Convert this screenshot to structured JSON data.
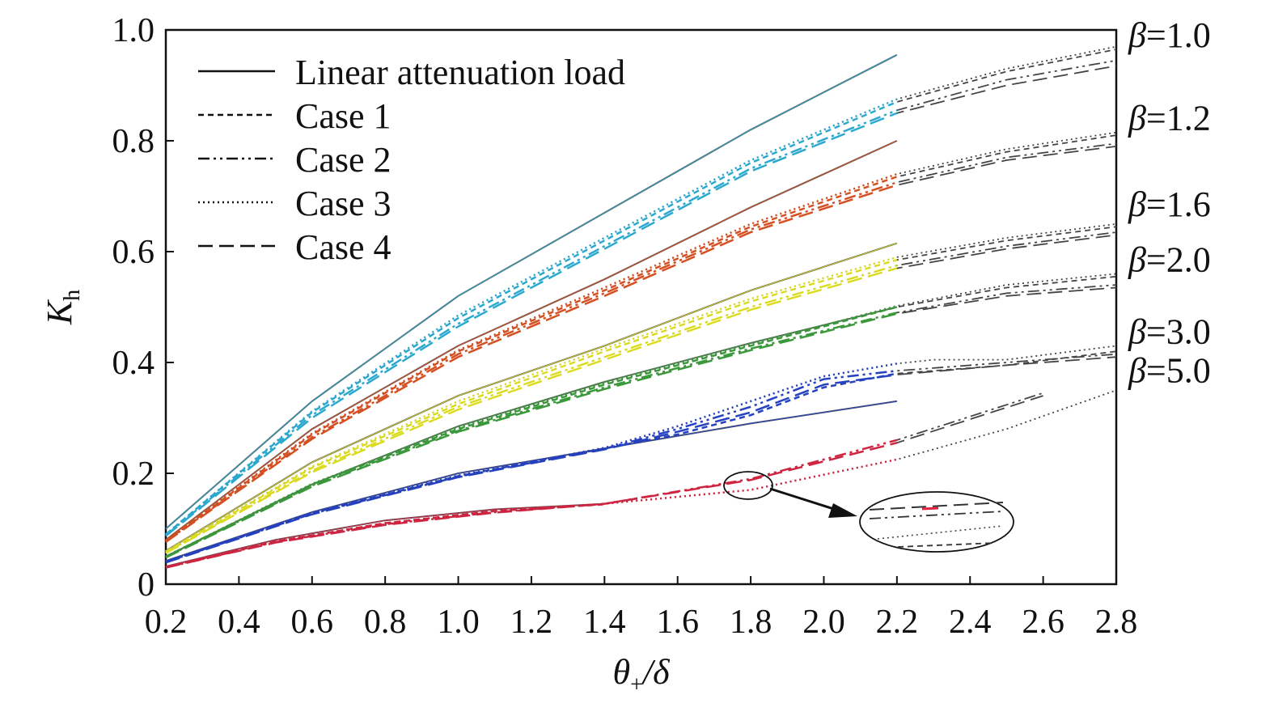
{
  "chart_data": {
    "type": "line",
    "xlabel": "θ+/δ",
    "ylabel": "Kh",
    "xlim": [
      0.2,
      2.8
    ],
    "ylim": [
      0,
      1.0
    ],
    "xticks": [
      "0.2",
      "0.4",
      "0.6",
      "0.8",
      "1.0",
      "1.2",
      "1.4",
      "1.6",
      "1.8",
      "2.0",
      "2.2",
      "2.4",
      "2.6",
      "2.8"
    ],
    "yticks": [
      "0",
      "0.2",
      "0.4",
      "0.6",
      "0.8",
      "1.0"
    ],
    "legend": {
      "position": "top-left",
      "entries": [
        {
          "label": "Linear attenuation load",
          "dash": "solid"
        },
        {
          "label": "Case 1",
          "dash": "short-dash"
        },
        {
          "label": "Case 2",
          "dash": "dash-dot-dot"
        },
        {
          "label": "Case 3",
          "dash": "dotted"
        },
        {
          "label": "Case 4",
          "dash": "long-dash"
        }
      ]
    },
    "beta_labels": [
      {
        "text": "β=1.0",
        "y": 0.99
      },
      {
        "text": "β=1.2",
        "y": 0.84
      },
      {
        "text": "β=1.6",
        "y": 0.685
      },
      {
        "text": "β=2.0",
        "y": 0.585
      },
      {
        "text": "β=3.0",
        "y": 0.455
      },
      {
        "text": "β=5.0",
        "y": 0.385
      }
    ],
    "groups": [
      {
        "beta": "β=1.0",
        "color": "#29b6e0",
        "linear": {
          "x": [
            0.2,
            0.6,
            1.0,
            1.4,
            1.8,
            2.2
          ],
          "y": [
            0.1,
            0.33,
            0.52,
            0.67,
            0.82,
            0.955
          ]
        },
        "cases": [
          {
            "name": "Case 1",
            "x": [
              0.2,
              0.6,
              1.0,
              1.4,
              1.8,
              2.2,
              2.5,
              2.8
            ],
            "y": [
              0.09,
              0.31,
              0.48,
              0.62,
              0.76,
              0.87,
              0.925,
              0.965
            ]
          },
          {
            "name": "Case 2",
            "x": [
              0.2,
              0.6,
              1.0,
              1.4,
              1.8,
              2.2,
              2.5,
              2.8
            ],
            "y": [
              0.088,
              0.305,
              0.47,
              0.61,
              0.75,
              0.855,
              0.91,
              0.945
            ]
          },
          {
            "name": "Case 3",
            "x": [
              0.2,
              0.6,
              1.0,
              1.4,
              1.8,
              2.2,
              2.5,
              2.8
            ],
            "y": [
              0.09,
              0.312,
              0.485,
              0.625,
              0.765,
              0.875,
              0.93,
              0.97
            ]
          },
          {
            "name": "Case 4",
            "x": [
              0.2,
              0.6,
              1.0,
              1.4,
              1.8,
              2.2,
              2.5,
              2.8
            ],
            "y": [
              0.087,
              0.3,
              0.465,
              0.605,
              0.745,
              0.85,
              0.9,
              0.935
            ]
          }
        ]
      },
      {
        "beta": "β=1.2",
        "color": "#e8501c",
        "linear": {
          "x": [
            0.2,
            0.6,
            1.0,
            1.4,
            1.8,
            2.2
          ],
          "y": [
            0.08,
            0.28,
            0.43,
            0.55,
            0.68,
            0.8
          ]
        },
        "cases": [
          {
            "name": "Case 1",
            "x": [
              0.2,
              0.6,
              1.0,
              1.4,
              1.8,
              2.2,
              2.5,
              2.8
            ],
            "y": [
              0.078,
              0.27,
              0.42,
              0.53,
              0.645,
              0.735,
              0.78,
              0.81
            ]
          },
          {
            "name": "Case 2",
            "x": [
              0.2,
              0.6,
              1.0,
              1.4,
              1.8,
              2.2,
              2.5,
              2.8
            ],
            "y": [
              0.077,
              0.265,
              0.415,
              0.525,
              0.64,
              0.725,
              0.77,
              0.795
            ]
          },
          {
            "name": "Case 3",
            "x": [
              0.2,
              0.6,
              1.0,
              1.4,
              1.8,
              2.2,
              2.5,
              2.8
            ],
            "y": [
              0.079,
              0.272,
              0.422,
              0.535,
              0.65,
              0.74,
              0.785,
              0.815
            ]
          },
          {
            "name": "Case 4",
            "x": [
              0.2,
              0.6,
              1.0,
              1.4,
              1.8,
              2.2,
              2.5,
              2.8
            ],
            "y": [
              0.076,
              0.262,
              0.41,
              0.52,
              0.635,
              0.72,
              0.765,
              0.79
            ]
          }
        ]
      },
      {
        "beta": "β=1.6",
        "color": "#f0f020",
        "linear": {
          "x": [
            0.2,
            0.6,
            1.0,
            1.4,
            1.8,
            2.2
          ],
          "y": [
            0.06,
            0.22,
            0.34,
            0.43,
            0.53,
            0.615
          ]
        },
        "cases": [
          {
            "name": "Case 1",
            "x": [
              0.2,
              0.6,
              1.0,
              1.4,
              1.8,
              2.2,
              2.5,
              2.8
            ],
            "y": [
              0.058,
              0.21,
              0.325,
              0.42,
              0.51,
              0.585,
              0.62,
              0.645
            ]
          },
          {
            "name": "Case 2",
            "x": [
              0.2,
              0.6,
              1.0,
              1.4,
              1.8,
              2.2,
              2.5,
              2.8
            ],
            "y": [
              0.057,
              0.205,
              0.32,
              0.41,
              0.5,
              0.575,
              0.61,
              0.635
            ]
          },
          {
            "name": "Case 3",
            "x": [
              0.2,
              0.6,
              1.0,
              1.4,
              1.8,
              2.2,
              2.5,
              2.8
            ],
            "y": [
              0.059,
              0.212,
              0.33,
              0.425,
              0.515,
              0.59,
              0.625,
              0.65
            ]
          },
          {
            "name": "Case 4",
            "x": [
              0.2,
              0.6,
              1.0,
              1.4,
              1.8,
              2.2,
              2.5,
              2.8
            ],
            "y": [
              0.056,
              0.202,
              0.315,
              0.405,
              0.495,
              0.57,
              0.605,
              0.63
            ]
          }
        ]
      },
      {
        "beta": "β=2.0",
        "color": "#3aa33a",
        "linear": {
          "x": [
            0.2,
            0.6,
            1.0,
            1.4,
            1.8,
            2.2
          ],
          "y": [
            0.05,
            0.18,
            0.285,
            0.365,
            0.435,
            0.5
          ]
        },
        "cases": [
          {
            "name": "Case 1",
            "x": [
              0.2,
              0.6,
              1.0,
              1.4,
              1.8,
              2.2,
              2.5,
              2.8
            ],
            "y": [
              0.05,
              0.18,
              0.28,
              0.36,
              0.43,
              0.5,
              0.535,
              0.555
            ]
          },
          {
            "name": "Case 2",
            "x": [
              0.2,
              0.6,
              1.0,
              1.4,
              1.8,
              2.2,
              2.5,
              2.8
            ],
            "y": [
              0.049,
              0.178,
              0.277,
              0.355,
              0.425,
              0.49,
              0.525,
              0.54
            ]
          },
          {
            "name": "Case 3",
            "x": [
              0.2,
              0.6,
              1.0,
              1.4,
              1.8,
              2.2,
              2.5,
              2.8
            ],
            "y": [
              0.05,
              0.181,
              0.282,
              0.362,
              0.432,
              0.502,
              0.54,
              0.56
            ]
          },
          {
            "name": "Case 4",
            "x": [
              0.2,
              0.6,
              1.0,
              1.4,
              1.8,
              2.2,
              2.5,
              2.8
            ],
            "y": [
              0.048,
              0.176,
              0.275,
              0.352,
              0.422,
              0.488,
              0.52,
              0.535
            ]
          }
        ]
      },
      {
        "beta": "β=3.0",
        "color": "#2040d0",
        "linear": {
          "x": [
            0.2,
            0.6,
            1.0,
            1.4,
            1.8,
            2.2
          ],
          "y": [
            0.042,
            0.13,
            0.2,
            0.245,
            0.29,
            0.33
          ]
        },
        "cases": [
          {
            "name": "Case 1",
            "x": [
              0.2,
              0.6,
              1.0,
              1.4,
              1.6,
              1.8,
              2.0,
              2.2,
              2.5,
              2.8
            ],
            "y": [
              0.04,
              0.128,
              0.195,
              0.245,
              0.27,
              0.305,
              0.355,
              0.38,
              0.395,
              0.42
            ]
          },
          {
            "name": "Case 2",
            "x": [
              0.2,
              0.6,
              1.0,
              1.4,
              1.6,
              1.8,
              2.0,
              2.2,
              2.5,
              2.8
            ],
            "y": [
              0.04,
              0.127,
              0.194,
              0.244,
              0.28,
              0.32,
              0.37,
              0.385,
              0.4,
              0.415
            ]
          },
          {
            "name": "Case 3",
            "x": [
              0.2,
              0.6,
              1.0,
              1.4,
              1.6,
              1.8,
              2.0,
              2.2,
              2.3,
              2.5,
              2.8
            ],
            "y": [
              0.041,
              0.129,
              0.196,
              0.246,
              0.285,
              0.33,
              0.375,
              0.398,
              0.405,
              0.405,
              0.43
            ]
          },
          {
            "name": "Case 4",
            "x": [
              0.2,
              0.6,
              1.0,
              1.4,
              1.6,
              1.8,
              2.0,
              2.2,
              2.5,
              2.8
            ],
            "y": [
              0.039,
              0.126,
              0.193,
              0.243,
              0.275,
              0.31,
              0.36,
              0.378,
              0.395,
              0.41
            ]
          }
        ]
      },
      {
        "beta": "β=5.0",
        "color": "#e02040",
        "linear": {
          "x": [
            0.2,
            0.5,
            0.8,
            1.1,
            1.4
          ],
          "y": [
            0.032,
            0.08,
            0.115,
            0.135,
            0.145
          ]
        },
        "cases": [
          {
            "name": "Case 1",
            "x": [
              0.2,
              0.5,
              0.8,
              1.1,
              1.4
            ],
            "y": [
              0.031,
              0.077,
              0.11,
              0.132,
              0.144
            ]
          },
          {
            "name": "Case 2",
            "x": [
              0.2,
              0.5,
              0.8,
              1.1,
              1.4,
              1.8,
              2.2,
              2.6
            ],
            "y": [
              0.03,
              0.076,
              0.108,
              0.13,
              0.145,
              0.19,
              0.26,
              0.345
            ]
          },
          {
            "name": "Case 3",
            "x": [
              0.2,
              0.5,
              0.8,
              1.1,
              1.4,
              1.8,
              2.2,
              2.5,
              2.8
            ],
            "y": [
              0.031,
              0.077,
              0.11,
              0.132,
              0.145,
              0.17,
              0.225,
              0.28,
              0.35
            ]
          },
          {
            "name": "Case 4",
            "x": [
              0.2,
              0.5,
              0.8,
              1.1,
              1.4,
              1.8,
              2.2,
              2.6
            ],
            "y": [
              0.03,
              0.075,
              0.107,
              0.129,
              0.145,
              0.188,
              0.255,
              0.34
            ]
          }
        ]
      }
    ]
  }
}
